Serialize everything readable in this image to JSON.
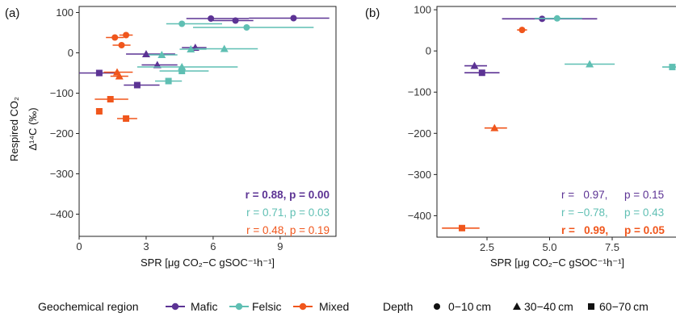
{
  "colors": {
    "mafic": "#5c3394",
    "felsic": "#5fbfb3",
    "mixed": "#f0561c"
  },
  "legend": {
    "region_title": "Geochemical region",
    "regions": [
      {
        "key": "mafic",
        "label": "Mafic"
      },
      {
        "key": "felsic",
        "label": "Felsic"
      },
      {
        "key": "mixed",
        "label": "Mixed"
      }
    ],
    "depth_title": "Depth",
    "depths": [
      {
        "shape": "circle",
        "label": "0−10 cm"
      },
      {
        "shape": "triangle",
        "label": "30−40 cm"
      },
      {
        "shape": "square",
        "label": "60−70 cm"
      }
    ]
  },
  "chart_data": [
    {
      "type": "scatter",
      "panel_label": "(a)",
      "ylabel_lines": [
        "Respired CO₂",
        "Δ¹⁴C (‰)"
      ],
      "xlabel": "SPR [μg CO₂−C gSOC⁻¹h⁻¹]",
      "xlim": [
        0,
        11.5
      ],
      "ylim": [
        -455,
        115
      ],
      "x_ticks": [
        0,
        3,
        6,
        9
      ],
      "x_tick_labels": [
        "0",
        "3",
        "6",
        "9"
      ],
      "y_ticks": [
        100,
        0,
        -100,
        -200,
        -300,
        -400
      ],
      "y_tick_labels": [
        "100",
        "0",
        "−100",
        "−200",
        "−300",
        "−400"
      ],
      "grid": false,
      "points": [
        {
          "region": "mafic",
          "depth": "circle",
          "x": 5.9,
          "y": 85,
          "xerr": [
            4.8,
            7.6
          ]
        },
        {
          "region": "mafic",
          "depth": "circle",
          "x": 7.0,
          "y": 80,
          "xerr": [
            6.0,
            7.8
          ]
        },
        {
          "region": "mafic",
          "depth": "circle",
          "x": 9.6,
          "y": 86,
          "xerr": [
            7.6,
            11.2
          ]
        },
        {
          "region": "mafic",
          "depth": "triangle",
          "x": 3.0,
          "y": -3,
          "xerr": [
            2.1,
            4.3
          ]
        },
        {
          "region": "mafic",
          "depth": "triangle",
          "x": 3.5,
          "y": -30,
          "xerr": [
            2.8,
            4.4
          ]
        },
        {
          "region": "mafic",
          "depth": "triangle",
          "x": 5.2,
          "y": 13,
          "xerr": [
            4.6,
            5.7
          ]
        },
        {
          "region": "mafic",
          "depth": "square",
          "x": 0.9,
          "y": -50,
          "xerr": [
            0.0,
            1.7
          ]
        },
        {
          "region": "mafic",
          "depth": "square",
          "x": 2.6,
          "y": -80,
          "xerr": [
            2.0,
            3.6
          ]
        },
        {
          "region": "felsic",
          "depth": "circle",
          "x": 4.6,
          "y": 72,
          "xerr": [
            3.9,
            6.4
          ]
        },
        {
          "region": "felsic",
          "depth": "circle",
          "x": 7.5,
          "y": 63,
          "xerr": [
            5.1,
            10.5
          ]
        },
        {
          "region": "felsic",
          "depth": "triangle",
          "x": 3.7,
          "y": -5,
          "xerr": [
            3.1,
            4.4
          ]
        },
        {
          "region": "felsic",
          "depth": "triangle",
          "x": 5.0,
          "y": 9,
          "xerr": [
            4.5,
            5.7
          ]
        },
        {
          "region": "felsic",
          "depth": "triangle",
          "x": 6.5,
          "y": 10,
          "xerr": [
            5.2,
            8.0
          ]
        },
        {
          "region": "felsic",
          "depth": "triangle",
          "x": 4.6,
          "y": -35,
          "xerr": [
            2.6,
            7.1
          ]
        },
        {
          "region": "felsic",
          "depth": "square",
          "x": 4.6,
          "y": -45,
          "xerr": [
            3.6,
            5.8
          ]
        },
        {
          "region": "felsic",
          "depth": "square",
          "x": 4.0,
          "y": -70,
          "xerr": [
            3.4,
            4.6
          ]
        },
        {
          "region": "mixed",
          "depth": "circle",
          "x": 1.6,
          "y": 38,
          "xerr": [
            1.2,
            2.0
          ]
        },
        {
          "region": "mixed",
          "depth": "circle",
          "x": 2.1,
          "y": 44,
          "xerr": [
            1.8,
            2.4
          ]
        },
        {
          "region": "mixed",
          "depth": "circle",
          "x": 1.9,
          "y": 19,
          "xerr": [
            1.5,
            2.3
          ]
        },
        {
          "region": "mixed",
          "depth": "triangle",
          "x": 1.7,
          "y": -48,
          "xerr": [
            1.1,
            2.4
          ]
        },
        {
          "region": "mixed",
          "depth": "triangle",
          "x": 1.8,
          "y": -58,
          "xerr": [
            1.4,
            2.2
          ]
        },
        {
          "region": "mixed",
          "depth": "square",
          "x": 1.4,
          "y": -115,
          "xerr": [
            0.7,
            2.2
          ]
        },
        {
          "region": "mixed",
          "depth": "square",
          "x": 0.9,
          "y": -145,
          "xerr": [
            0.9,
            0.9
          ]
        },
        {
          "region": "mixed",
          "depth": "square",
          "x": 2.1,
          "y": -163,
          "xerr": [
            1.7,
            2.6
          ]
        }
      ],
      "stats": [
        {
          "region": "mafic",
          "bold": true,
          "text": "r = 0.88, p = 0.00"
        },
        {
          "region": "felsic",
          "bold": false,
          "text": "r = 0.71, p = 0.03"
        },
        {
          "region": "mixed",
          "bold": false,
          "text": "r = 0.48, p = 0.19"
        }
      ]
    },
    {
      "type": "scatter",
      "panel_label": "(b)",
      "xlabel": "SPR [μg CO₂−C gSOC⁻¹h⁻¹]",
      "xlim": [
        0.5,
        10.5
      ],
      "ylim": [
        -452,
        108
      ],
      "x_ticks": [
        2.5,
        5.0,
        7.5
      ],
      "x_tick_labels": [
        "2.5",
        "5.0",
        "7.5"
      ],
      "y_ticks": [
        100,
        0,
        -100,
        -200,
        -300,
        -400
      ],
      "y_tick_labels": [
        "100",
        "0",
        "−100",
        "−200",
        "−300",
        "−400"
      ],
      "grid": false,
      "points": [
        {
          "region": "mafic",
          "depth": "circle",
          "x": 4.7,
          "y": 78,
          "xerr": [
            3.1,
            6.9
          ]
        },
        {
          "region": "felsic",
          "depth": "circle",
          "x": 5.3,
          "y": 79,
          "xerr": [
            4.4,
            6.3
          ]
        },
        {
          "region": "mixed",
          "depth": "circle",
          "x": 3.9,
          "y": 51,
          "xerr": [
            3.7,
            4.1
          ]
        },
        {
          "region": "mafic",
          "depth": "triangle",
          "x": 2.0,
          "y": -36,
          "xerr": [
            1.6,
            2.5
          ]
        },
        {
          "region": "felsic",
          "depth": "triangle",
          "x": 6.6,
          "y": -32,
          "xerr": [
            5.6,
            7.6
          ]
        },
        {
          "region": "mixed",
          "depth": "triangle",
          "x": 2.8,
          "y": -187,
          "xerr": [
            2.4,
            3.3
          ]
        },
        {
          "region": "mafic",
          "depth": "square",
          "x": 2.3,
          "y": -53,
          "xerr": [
            1.6,
            3.0
          ]
        },
        {
          "region": "felsic",
          "depth": "square",
          "x": 9.9,
          "y": -39,
          "xerr": [
            9.5,
            10.4
          ]
        },
        {
          "region": "mixed",
          "depth": "square",
          "x": 1.5,
          "y": -430,
          "xerr": [
            0.7,
            2.2
          ]
        }
      ],
      "stats": [
        {
          "region": "mafic",
          "bold": false,
          "r": "r =   0.97,",
          "p": "p = 0.15"
        },
        {
          "region": "felsic",
          "bold": false,
          "r": "r = −0.78,",
          "p": "p = 0.43"
        },
        {
          "region": "mixed",
          "bold": true,
          "r": "r =   0.99,",
          "p": "p = 0.05"
        }
      ]
    }
  ]
}
